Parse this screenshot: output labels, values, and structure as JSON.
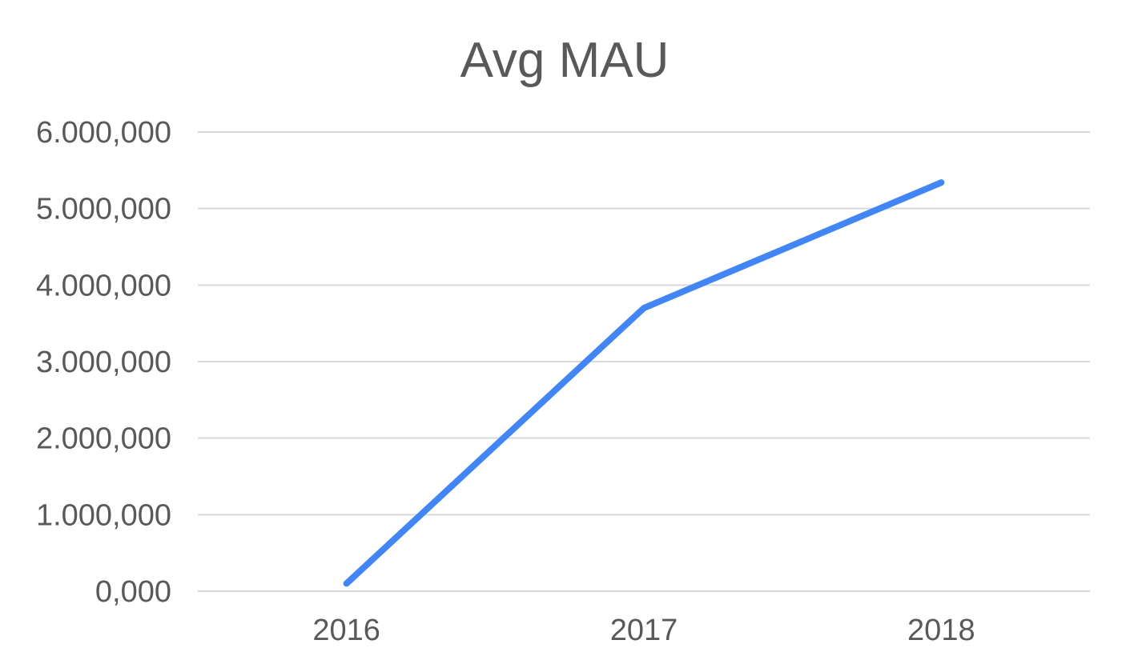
{
  "chart_data": {
    "type": "line",
    "title": "Avg MAU",
    "xlabel": "",
    "ylabel": "",
    "categories": [
      "2016",
      "2017",
      "2018"
    ],
    "series": [
      {
        "values": [
          100000,
          3700000,
          5340000
        ],
        "color": "#4285f4"
      }
    ],
    "ylim": [
      0,
      6000000
    ],
    "y_ticks": [
      0,
      1000000,
      2000000,
      3000000,
      4000000,
      5000000,
      6000000
    ],
    "y_tick_labels": [
      "0,000",
      "1.000,000",
      "2.000,000",
      "3.000,000",
      "4.000,000",
      "5.000,000",
      "6.000,000"
    ],
    "grid": true,
    "legend": "none"
  },
  "colors": {
    "text": "#595959",
    "grid": "#d9d9d9",
    "series": "#4285f4"
  }
}
